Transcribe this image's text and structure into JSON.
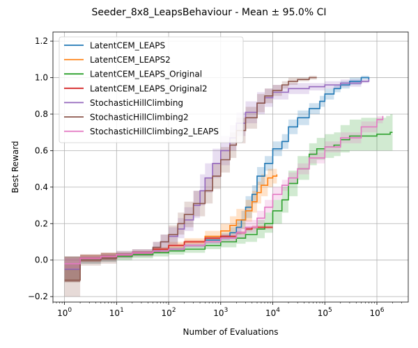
{
  "chart_data": {
    "type": "line",
    "title": "Seeder_8x8_LeapsBehaviour - Mean ± 95.0% CI",
    "xlabel": "Number of Evaluations",
    "ylabel": "Best Reward",
    "xscale": "log",
    "xlim": [
      0.6,
      4000000
    ],
    "ylim": [
      -0.23,
      1.25
    ],
    "x_ticks": [
      {
        "value": 1,
        "base": "10",
        "exp": "0"
      },
      {
        "value": 10,
        "base": "10",
        "exp": "1"
      },
      {
        "value": 100,
        "base": "10",
        "exp": "2"
      },
      {
        "value": 1000,
        "base": "10",
        "exp": "3"
      },
      {
        "value": 10000,
        "base": "10",
        "exp": "4"
      },
      {
        "value": 100000,
        "base": "10",
        "exp": "5"
      },
      {
        "value": 1000000,
        "base": "10",
        "exp": "6"
      }
    ],
    "y_ticks": [
      {
        "value": -0.2,
        "label": "−0.2"
      },
      {
        "value": 0.0,
        "label": "0.0"
      },
      {
        "value": 0.2,
        "label": "0.2"
      },
      {
        "value": 0.4,
        "label": "0.4"
      },
      {
        "value": 0.6,
        "label": "0.6"
      },
      {
        "value": 0.8,
        "label": "0.8"
      },
      {
        "value": 1.0,
        "label": "1.0"
      },
      {
        "value": 1.2,
        "label": "1.2"
      }
    ],
    "grid": true,
    "legend_position": "top-left",
    "series": [
      {
        "name": "LatentCEM_LEAPS",
        "color": "#1f77b4",
        "x": [
          1,
          2,
          2,
          5,
          10,
          20,
          50,
          100,
          200,
          500,
          1000,
          1500,
          2000,
          2500,
          3000,
          4000,
          5000,
          7000,
          10000,
          15000,
          20000,
          30000,
          50000,
          80000,
          100000,
          150000,
          200000,
          300000,
          500000,
          700000
        ],
        "y": [
          -0.05,
          -0.05,
          0.01,
          0.02,
          0.03,
          0.04,
          0.05,
          0.06,
          0.08,
          0.11,
          0.13,
          0.15,
          0.18,
          0.22,
          0.29,
          0.36,
          0.46,
          0.53,
          0.61,
          0.65,
          0.73,
          0.78,
          0.83,
          0.87,
          0.91,
          0.94,
          0.96,
          0.98,
          1.0,
          0.99
        ],
        "lower": [
          -0.12,
          -0.12,
          -0.01,
          0.0,
          0.02,
          0.03,
          0.04,
          0.05,
          0.07,
          0.09,
          0.11,
          0.12,
          0.14,
          0.17,
          0.23,
          0.31,
          0.41,
          0.49,
          0.57,
          0.61,
          0.69,
          0.74,
          0.8,
          0.84,
          0.88,
          0.92,
          0.94,
          0.96,
          0.99,
          0.98
        ],
        "upper": [
          0.02,
          0.02,
          0.03,
          0.04,
          0.04,
          0.05,
          0.06,
          0.07,
          0.09,
          0.13,
          0.15,
          0.18,
          0.22,
          0.27,
          0.35,
          0.41,
          0.51,
          0.57,
          0.65,
          0.69,
          0.77,
          0.82,
          0.86,
          0.9,
          0.94,
          0.96,
          0.98,
          1.0,
          1.01,
          1.0
        ]
      },
      {
        "name": "LatentCEM_LEAPS2",
        "color": "#ff7f0e",
        "x": [
          1,
          2,
          2,
          5,
          10,
          20,
          50,
          100,
          200,
          500,
          1000,
          1500,
          2000,
          3000,
          4000,
          5000,
          6000,
          8000,
          10000,
          12000
        ],
        "y": [
          -0.05,
          -0.05,
          0.01,
          0.02,
          0.03,
          0.04,
          0.06,
          0.08,
          0.1,
          0.13,
          0.16,
          0.19,
          0.22,
          0.27,
          0.32,
          0.37,
          0.41,
          0.45,
          0.46,
          0.47
        ],
        "lower": [
          -0.12,
          -0.12,
          -0.01,
          0.0,
          0.02,
          0.03,
          0.04,
          0.06,
          0.08,
          0.1,
          0.12,
          0.14,
          0.17,
          0.21,
          0.26,
          0.31,
          0.35,
          0.4,
          0.42,
          0.43
        ],
        "upper": [
          0.02,
          0.02,
          0.03,
          0.04,
          0.04,
          0.05,
          0.07,
          0.1,
          0.12,
          0.16,
          0.2,
          0.24,
          0.28,
          0.33,
          0.38,
          0.43,
          0.47,
          0.5,
          0.5,
          0.51
        ]
      },
      {
        "name": "LatentCEM_LEAPS_Original",
        "color": "#2ca02c",
        "x": [
          1,
          2,
          2,
          5,
          10,
          20,
          50,
          100,
          200,
          500,
          1000,
          2000,
          3000,
          5000,
          7000,
          10000,
          15000,
          20000,
          30000,
          50000,
          70000,
          100000,
          150000,
          200000,
          300000,
          500000,
          1000000,
          1500000,
          1800000,
          2000000
        ],
        "y": [
          -0.05,
          -0.05,
          0.0,
          0.01,
          0.02,
          0.03,
          0.04,
          0.05,
          0.06,
          0.08,
          0.1,
          0.12,
          0.14,
          0.17,
          0.2,
          0.27,
          0.33,
          0.42,
          0.5,
          0.58,
          0.61,
          0.62,
          0.63,
          0.66,
          0.68,
          0.68,
          0.69,
          0.69,
          0.7,
          0.7
        ],
        "lower": [
          -0.12,
          -0.12,
          -0.02,
          -0.01,
          0.0,
          0.01,
          0.02,
          0.03,
          0.04,
          0.06,
          0.07,
          0.09,
          0.1,
          0.12,
          0.15,
          0.2,
          0.26,
          0.35,
          0.44,
          0.52,
          0.55,
          0.56,
          0.57,
          0.59,
          0.6,
          0.6,
          0.6,
          0.6,
          0.6,
          0.6
        ],
        "upper": [
          0.02,
          0.02,
          0.02,
          0.03,
          0.04,
          0.05,
          0.06,
          0.07,
          0.08,
          0.1,
          0.13,
          0.15,
          0.18,
          0.22,
          0.26,
          0.33,
          0.4,
          0.49,
          0.57,
          0.64,
          0.67,
          0.69,
          0.7,
          0.74,
          0.77,
          0.78,
          0.78,
          0.79,
          0.8,
          0.8
        ]
      },
      {
        "name": "LatentCEM_LEAPS_Original2",
        "color": "#d62728",
        "x": [
          1,
          2,
          2,
          5,
          10,
          20,
          50,
          100,
          200,
          500,
          1000,
          2000,
          3000,
          4000,
          5000,
          7000,
          10000
        ],
        "y": [
          -0.05,
          -0.05,
          0.01,
          0.02,
          0.03,
          0.04,
          0.06,
          0.08,
          0.1,
          0.12,
          0.13,
          0.15,
          0.17,
          0.18,
          0.18,
          0.18,
          0.18
        ],
        "lower": [
          -0.12,
          -0.12,
          -0.01,
          0.0,
          0.02,
          0.03,
          0.05,
          0.07,
          0.09,
          0.11,
          0.12,
          0.14,
          0.16,
          0.17,
          0.17,
          0.17,
          0.17
        ],
        "upper": [
          0.02,
          0.02,
          0.03,
          0.04,
          0.04,
          0.05,
          0.07,
          0.09,
          0.11,
          0.13,
          0.14,
          0.16,
          0.18,
          0.19,
          0.19,
          0.19,
          0.19
        ]
      },
      {
        "name": "StochasticHillClimbing",
        "color": "#9467bd",
        "x": [
          1,
          2,
          2,
          5,
          10,
          20,
          50,
          70,
          100,
          150,
          200,
          300,
          400,
          500,
          700,
          1000,
          1500,
          2000,
          3000,
          5000,
          7000,
          10000,
          20000,
          50000,
          100000,
          200000,
          500000,
          700000
        ],
        "y": [
          -0.05,
          -0.05,
          0.0,
          0.01,
          0.03,
          0.04,
          0.07,
          0.1,
          0.13,
          0.17,
          0.22,
          0.3,
          0.38,
          0.45,
          0.53,
          0.6,
          0.67,
          0.75,
          0.81,
          0.86,
          0.89,
          0.92,
          0.94,
          0.95,
          0.96,
          0.97,
          0.98,
          0.99
        ],
        "lower": [
          -0.12,
          -0.12,
          -0.02,
          -0.01,
          0.01,
          0.02,
          0.04,
          0.06,
          0.08,
          0.12,
          0.16,
          0.23,
          0.3,
          0.37,
          0.45,
          0.52,
          0.6,
          0.68,
          0.75,
          0.8,
          0.84,
          0.88,
          0.91,
          0.93,
          0.94,
          0.95,
          0.97,
          0.98
        ],
        "upper": [
          0.02,
          0.02,
          0.02,
          0.03,
          0.05,
          0.06,
          0.1,
          0.14,
          0.18,
          0.23,
          0.29,
          0.38,
          0.47,
          0.53,
          0.61,
          0.68,
          0.74,
          0.81,
          0.87,
          0.92,
          0.94,
          0.96,
          0.97,
          0.97,
          0.98,
          0.99,
          0.99,
          1.0
        ]
      },
      {
        "name": "StochasticHillClimbing2",
        "color": "#8c564b",
        "x": [
          1,
          2,
          2,
          5,
          10,
          20,
          50,
          70,
          100,
          150,
          200,
          300,
          500,
          700,
          1000,
          1500,
          2000,
          3000,
          5000,
          7000,
          10000,
          15000,
          20000,
          30000,
          50000,
          70000
        ],
        "y": [
          -0.11,
          -0.11,
          0.0,
          0.01,
          0.03,
          0.04,
          0.07,
          0.1,
          0.14,
          0.2,
          0.25,
          0.31,
          0.38,
          0.46,
          0.55,
          0.63,
          0.71,
          0.78,
          0.86,
          0.9,
          0.93,
          0.96,
          0.98,
          0.99,
          1.0,
          1.0
        ],
        "lower": [
          -0.2,
          -0.2,
          -0.03,
          -0.02,
          0.01,
          0.02,
          0.04,
          0.06,
          0.09,
          0.14,
          0.18,
          0.24,
          0.31,
          0.39,
          0.48,
          0.56,
          0.64,
          0.72,
          0.81,
          0.86,
          0.9,
          0.94,
          0.96,
          0.98,
          0.99,
          1.0
        ],
        "upper": [
          -0.02,
          -0.02,
          0.03,
          0.04,
          0.05,
          0.06,
          0.1,
          0.14,
          0.19,
          0.26,
          0.32,
          0.38,
          0.45,
          0.53,
          0.62,
          0.7,
          0.78,
          0.84,
          0.91,
          0.94,
          0.96,
          0.98,
          1.0,
          1.0,
          1.01,
          1.01
        ]
      },
      {
        "name": "StochasticHillClimbing2_LEAPS",
        "color": "#e377c2",
        "x": [
          1,
          2,
          2,
          5,
          10,
          20,
          50,
          100,
          200,
          500,
          1000,
          2000,
          3000,
          5000,
          7000,
          10000,
          15000,
          20000,
          30000,
          50000,
          100000,
          200000,
          500000,
          1000000,
          1300000
        ],
        "y": [
          -0.02,
          -0.02,
          0.01,
          0.02,
          0.03,
          0.04,
          0.05,
          0.06,
          0.08,
          0.1,
          0.12,
          0.15,
          0.18,
          0.23,
          0.29,
          0.36,
          0.41,
          0.45,
          0.5,
          0.56,
          0.62,
          0.67,
          0.73,
          0.77,
          0.79
        ],
        "lower": [
          -0.05,
          -0.05,
          0.0,
          0.01,
          0.02,
          0.03,
          0.04,
          0.05,
          0.07,
          0.09,
          0.1,
          0.12,
          0.15,
          0.2,
          0.26,
          0.33,
          0.38,
          0.42,
          0.47,
          0.53,
          0.59,
          0.64,
          0.7,
          0.75,
          0.78
        ],
        "upper": [
          0.01,
          0.01,
          0.02,
          0.03,
          0.04,
          0.05,
          0.06,
          0.07,
          0.09,
          0.11,
          0.14,
          0.18,
          0.22,
          0.27,
          0.33,
          0.4,
          0.44,
          0.48,
          0.53,
          0.59,
          0.65,
          0.7,
          0.76,
          0.79,
          0.81
        ]
      }
    ]
  }
}
